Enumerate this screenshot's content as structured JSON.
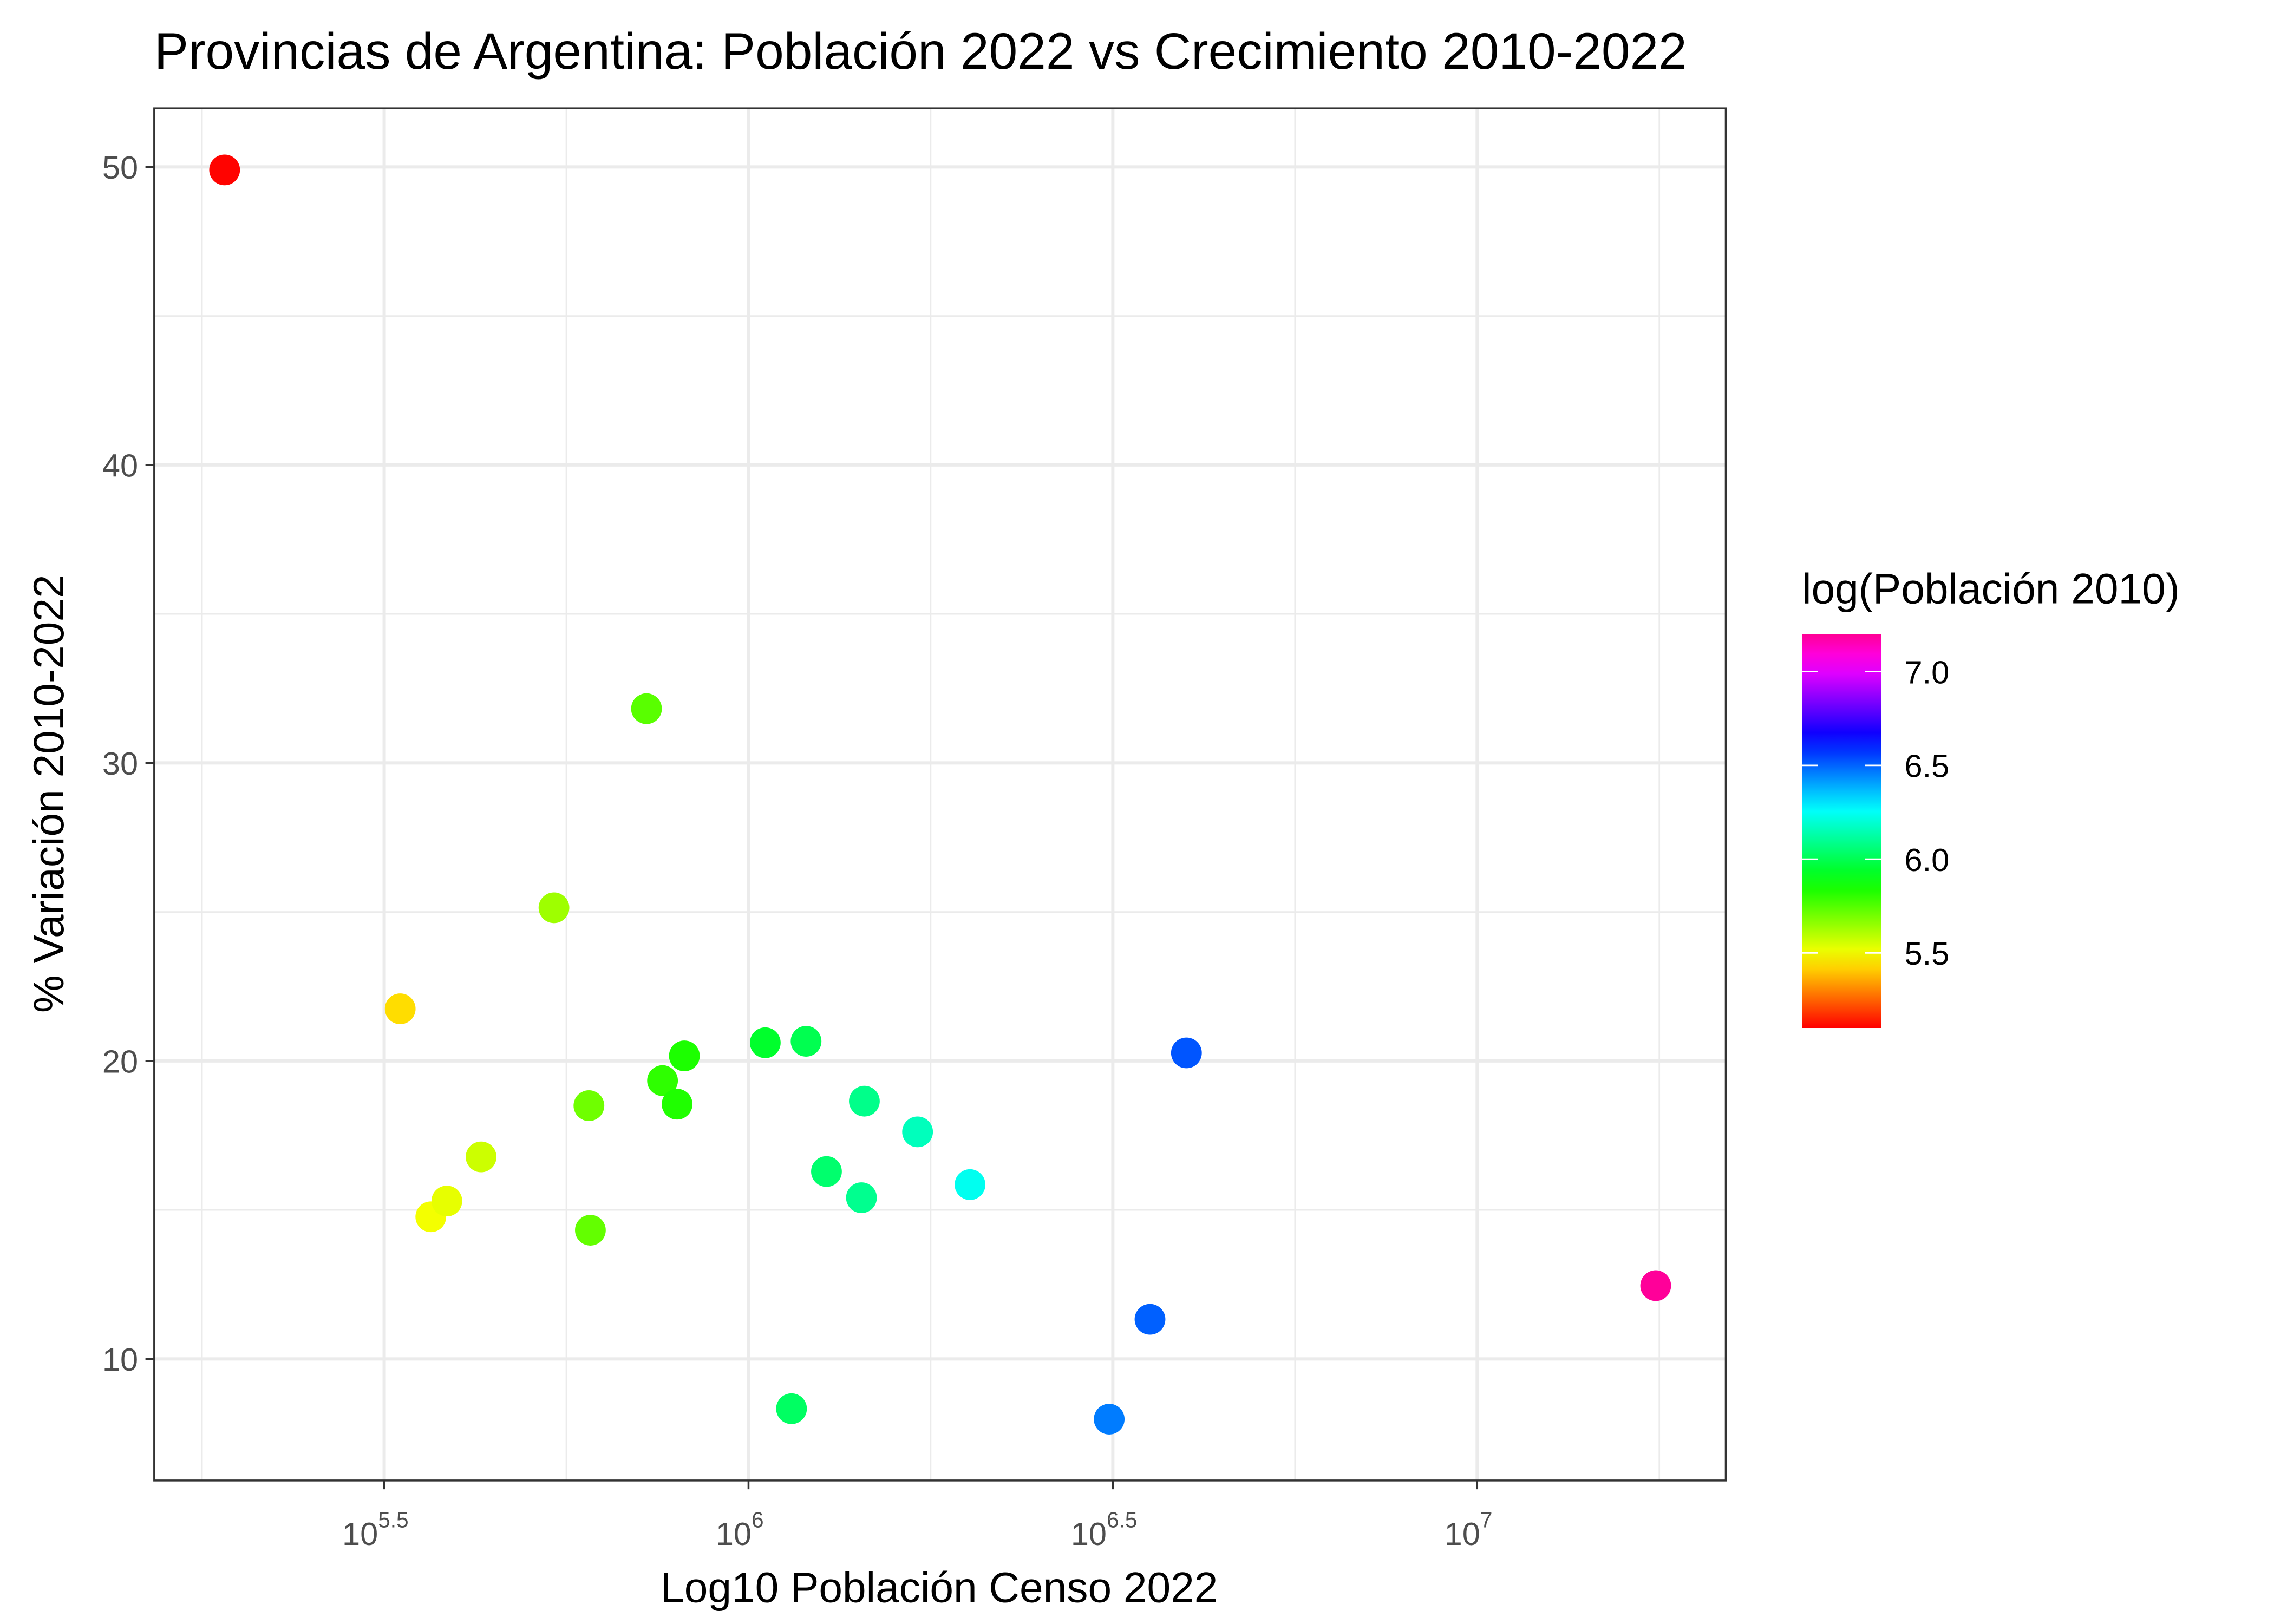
{
  "chart_data": {
    "type": "scatter",
    "title": "Provincias de Argentina: Población 2022 vs Crecimiento 2010-2022",
    "xlabel": "Log10 Población Censo 2022",
    "ylabel": "% Variación 2010-2022",
    "x_scale": "log10",
    "xlim_log10": [
      5.2,
      7.34
    ],
    "ylim": [
      6,
      52
    ],
    "grid": true,
    "x_ticks": [
      {
        "value": 5.5,
        "base": "10",
        "exp": "5.5"
      },
      {
        "value": 6.0,
        "base": "10",
        "exp": "6"
      },
      {
        "value": 6.5,
        "base": "10",
        "exp": "6.5"
      },
      {
        "value": 7.0,
        "base": "10",
        "exp": "7"
      }
    ],
    "y_ticks": [
      {
        "value": 10,
        "label": "10"
      },
      {
        "value": 20,
        "label": "20"
      },
      {
        "value": 30,
        "label": "30"
      },
      {
        "value": 40,
        "label": "40"
      },
      {
        "value": 50,
        "label": "50"
      }
    ],
    "legend": {
      "title": "log(Población 2010)",
      "placement": "right",
      "range": [
        5.1,
        7.2
      ],
      "ticks": [
        {
          "value": 5.5,
          "label": "5.5"
        },
        {
          "value": 6.0,
          "label": "6.0"
        },
        {
          "value": 6.5,
          "label": "6.5"
        },
        {
          "value": 7.0,
          "label": "7.0"
        }
      ]
    },
    "points_note_x": "x values are log10 of Población 2022",
    "points": [
      {
        "x": 5.281,
        "y": 49.9
      },
      {
        "x": 5.522,
        "y": 21.75
      },
      {
        "x": 5.564,
        "y": 14.77
      },
      {
        "x": 5.586,
        "y": 15.3
      },
      {
        "x": 5.633,
        "y": 16.78
      },
      {
        "x": 5.733,
        "y": 25.14
      },
      {
        "x": 5.781,
        "y": 18.5
      },
      {
        "x": 5.783,
        "y": 14.32
      },
      {
        "x": 5.86,
        "y": 31.82
      },
      {
        "x": 5.882,
        "y": 19.34
      },
      {
        "x": 5.902,
        "y": 18.55
      },
      {
        "x": 5.912,
        "y": 20.17
      },
      {
        "x": 6.023,
        "y": 20.61
      },
      {
        "x": 6.079,
        "y": 20.66
      },
      {
        "x": 6.059,
        "y": 8.33
      },
      {
        "x": 6.107,
        "y": 16.29
      },
      {
        "x": 6.155,
        "y": 15.41
      },
      {
        "x": 6.159,
        "y": 18.65
      },
      {
        "x": 6.232,
        "y": 17.62
      },
      {
        "x": 6.304,
        "y": 15.85
      },
      {
        "x": 6.495,
        "y": 7.98
      },
      {
        "x": 6.551,
        "y": 11.33
      },
      {
        "x": 6.601,
        "y": 20.27
      },
      {
        "x": 7.245,
        "y": 12.46
      }
    ]
  }
}
